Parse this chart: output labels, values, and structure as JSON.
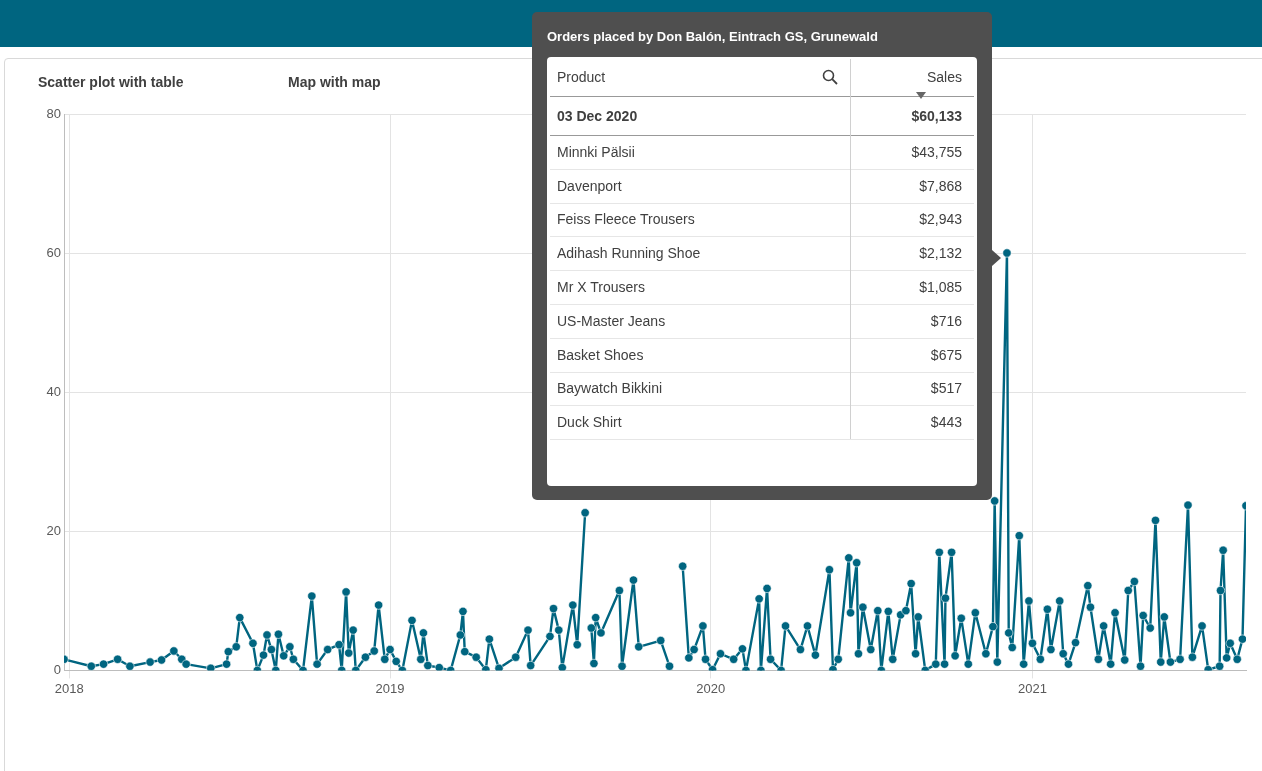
{
  "chart_data": {
    "type": "line",
    "color": "#006580",
    "marker": "circle",
    "grid": true,
    "xlim": [
      "2017-12-26",
      "2021-09-01"
    ],
    "xticks": [
      "2018",
      "2019",
      "2020",
      "2021"
    ],
    "ylim": [
      0,
      80
    ],
    "yticks": [
      0,
      20,
      40,
      60,
      80
    ],
    "x": [
      "2017-12-26",
      "2018-01-26",
      "2018-02-09",
      "2018-02-25",
      "2018-03-11",
      "2018-04-03",
      "2018-04-16",
      "2018-04-30",
      "2018-05-09",
      "2018-05-14",
      "2018-06-11",
      "2018-06-29",
      "2018-07-01",
      "2018-07-10",
      "2018-07-14",
      "2018-07-29",
      "2018-08-03",
      "2018-08-10",
      "2018-08-14",
      "2018-08-19",
      "2018-08-24",
      "2018-08-27",
      "2018-09-02",
      "2018-09-09",
      "2018-09-13",
      "2018-09-24",
      "2018-10-04",
      "2018-10-10",
      "2018-10-22",
      "2018-11-04",
      "2018-11-07",
      "2018-11-12",
      "2018-11-15",
      "2018-11-20",
      "2018-11-23",
      "2018-12-04",
      "2018-12-14",
      "2018-12-19",
      "2018-12-26",
      "2019-01-01",
      "2019-01-08",
      "2019-01-15",
      "2019-01-26",
      "2019-02-05",
      "2019-02-08",
      "2019-02-13",
      "2019-02-26",
      "2019-03-11",
      "2019-03-22",
      "2019-03-25",
      "2019-03-27",
      "2019-04-09",
      "2019-04-20",
      "2019-04-24",
      "2019-05-05",
      "2019-05-24",
      "2019-06-07",
      "2019-06-10",
      "2019-07-02",
      "2019-07-06",
      "2019-07-12",
      "2019-07-16",
      "2019-07-28",
      "2019-08-02",
      "2019-08-11",
      "2019-08-15",
      "2019-08-18",
      "2019-08-21",
      "2019-08-23",
      "2019-08-29",
      "2019-09-19",
      "2019-09-22",
      "2019-10-05",
      "2019-10-11",
      "2019-11-05",
      "2019-11-15",
      "2019-11-26",
      "2019-11-30",
      "2019-12-07",
      "2019-12-13",
      "2019-12-23",
      "2019-12-26",
      "2020-01-03",
      "2020-01-12",
      "2020-01-27",
      "2020-02-06",
      "2020-02-10",
      "2020-02-25",
      "2020-02-27",
      "2020-03-05",
      "2020-03-09",
      "2020-03-21",
      "2020-03-26",
      "2020-04-12",
      "2020-04-20",
      "2020-04-29",
      "2020-05-15",
      "2020-05-19",
      "2020-05-25",
      "2020-06-06",
      "2020-06-08",
      "2020-06-15",
      "2020-06-17",
      "2020-06-22",
      "2020-07-01",
      "2020-07-09",
      "2020-07-13",
      "2020-07-21",
      "2020-07-26",
      "2020-08-04",
      "2020-08-10",
      "2020-08-16",
      "2020-08-21",
      "2020-08-24",
      "2020-09-01",
      "2020-09-13",
      "2020-09-17",
      "2020-09-23",
      "2020-09-24",
      "2020-10-01",
      "2020-10-05",
      "2020-10-12",
      "2020-10-20",
      "2020-10-28",
      "2020-11-09",
      "2020-11-17",
      "2020-11-19",
      "2020-11-22",
      "2020-12-03",
      "2020-12-05",
      "2020-12-09",
      "2020-12-17",
      "2020-12-22",
      "2020-12-28",
      "2021-01-01",
      "2021-01-10",
      "2021-01-18",
      "2021-01-22",
      "2021-02-01",
      "2021-02-05",
      "2021-02-11",
      "2021-02-19",
      "2021-03-05",
      "2021-03-08",
      "2021-03-17",
      "2021-03-23",
      "2021-03-31",
      "2021-04-05",
      "2021-04-16",
      "2021-04-20",
      "2021-04-27",
      "2021-05-04",
      "2021-05-07",
      "2021-05-15",
      "2021-05-21",
      "2021-05-27",
      "2021-05-31",
      "2021-06-07",
      "2021-06-18",
      "2021-06-27",
      "2021-07-02",
      "2021-07-13",
      "2021-07-20",
      "2021-08-02",
      "2021-08-03",
      "2021-08-06",
      "2021-08-10",
      "2021-08-14",
      "2021-08-22",
      "2021-08-28",
      "2021-09-01"
    ],
    "values": [
      1.6,
      0.6,
      0.9,
      1.6,
      0.6,
      1.2,
      1.5,
      2.8,
      1.6,
      0.9,
      0.3,
      0.9,
      2.7,
      3.4,
      7.6,
      3.9,
      0,
      2.2,
      5.1,
      3,
      0,
      5.2,
      2.1,
      3.4,
      1.6,
      0,
      10.7,
      0.9,
      3,
      3.7,
      0,
      11.3,
      2.5,
      5.8,
      0,
      1.9,
      2.8,
      9.4,
      1.6,
      3,
      1.3,
      0,
      7.2,
      1.6,
      5.4,
      0.7,
      0.4,
      0,
      5.1,
      8.5,
      2.7,
      1.9,
      0.1,
      4.5,
      0.3,
      1.9,
      5.8,
      0.7,
      4.9,
      8.9,
      5.8,
      0.4,
      9.4,
      3.7,
      22.7,
      null,
      6.1,
      1,
      7.6,
      5.4,
      11.5,
      0.6,
      13,
      3.4,
      4.3,
      0.6,
      null,
      15,
      1.8,
      3,
      6.4,
      1.6,
      0.1,
      2.4,
      1.6,
      3.1,
      0,
      10.3,
      0,
      11.8,
      1.6,
      0,
      6.4,
      3,
      6.4,
      2.2,
      14.5,
      0.1,
      1.6,
      16.2,
      8.3,
      15.5,
      2.4,
      9.1,
      3,
      8.6,
      0,
      8.5,
      1.6,
      8,
      8.6,
      12.5,
      2.4,
      7.7,
      0,
      0.9,
      17,
      0.9,
      10.4,
      17,
      2.1,
      7.5,
      0.9,
      8.3,
      2.4,
      6.3,
      24.4,
      1.2,
      60.1,
      5.4,
      3.3,
      19.4,
      0.9,
      10,
      3.9,
      1.6,
      8.8,
      3,
      10,
      2.4,
      0.9,
      4,
      12.2,
      9.1,
      1.6,
      6.4,
      0.9,
      8.3,
      1.5,
      11.5,
      12.8,
      0.6,
      7.9,
      6.1,
      21.6,
      1.2,
      7.7,
      1.2,
      1.6,
      23.8,
      1.9,
      6.4,
      0.1,
      0.6,
      11.5,
      17.3,
      1.8,
      3.9,
      1.6,
      4.5,
      23.7
    ],
    "annotations": [
      "Scatter plot with table",
      "Map with map",
      "Orders placed by Don Balón, Eintrach GS, Grunewald",
      "Product",
      "Sales",
      "03 Dec 2020",
      "$60,133",
      "Minnki Pälsii",
      "$43,755",
      "Davenport",
      "$7,868",
      "Feiss Fleece Trousers",
      "$2,943",
      "Adihash Running Shoe",
      "$2,132",
      "Mr X Trousers",
      "$1,085",
      "US-Master Jeans",
      "$716",
      "Basket Shoes",
      "$675",
      "Baywatch Bikkini",
      "$517",
      "Duck Shirt",
      "$443"
    ]
  }
}
